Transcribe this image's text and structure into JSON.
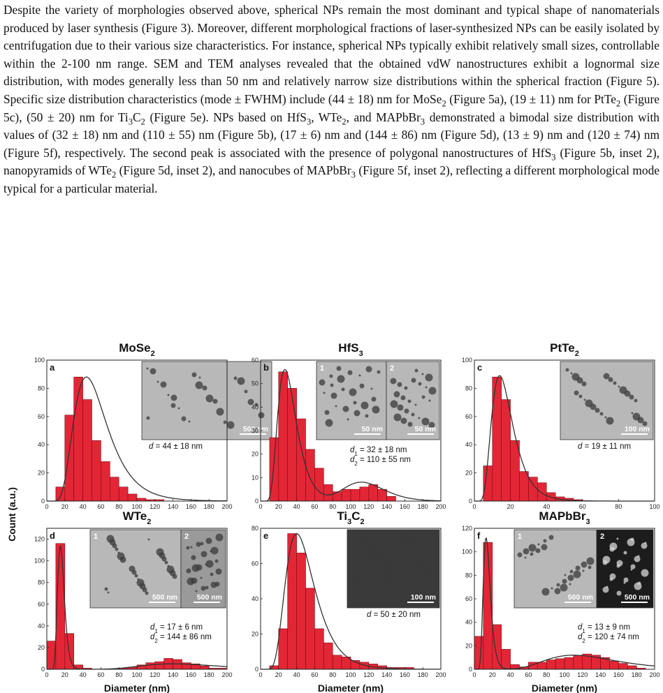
{
  "paragraph": "Despite the variety of morphologies observed above, spherical NPs remain the most dominant and typical shape of nanomaterials produced by laser synthesis (Figure 3). Moreover, different morphological fractions of laser-synthesized NPs can be easily isolated by centrifugation due to their various size characteristics. For instance, spherical NPs typically exhibit relatively small sizes, controllable within the 2-100 nm range. SEM and TEM analyses revealed that the obtained vdW nanostructures exhibit a lognormal size distribution, with modes generally less than 50 nm and relatively narrow size distributions within the spherical fraction (Figure 5). Specific size distribution characteristics (mode ± FWHM) include (44 ± 18) nm for MoSe{2} (Figure 5a), (19 ± 11) nm for PtTe{2} (Figure 5c), (50 ± 20) nm for Ti{3}C{2} (Figure 5e). NPs based on HfS{3}, WTe{2}, and MAPbBr{3} demonstrated a bimodal size distribution with values of (32 ± 18) nm and (110 ± 55) nm (Figure 5b), (17 ± 6) nm and (144 ± 86) nm (Figure 5d), (13 ± 9) nm and (120 ± 74) nm (Figure 5f), respectively. The second peak is associated with the presence of polygonal nanostructures of HfS{3} (Figure 5b, inset 2), nanopyramids of WTe{2} (Figure 5d, inset 2), and nanocubes of MAPbBr{3} (Figure 5f, inset 2), reflecting a different morphological mode typical for a particular material.",
  "figure": {
    "y_axis_title": "Count (a.u.)",
    "x_axis_title": "Diameter (nm)",
    "bar_color": "#e32636",
    "fit_color": "#333333"
  },
  "chart_data": [
    {
      "type": "bar",
      "label": "a",
      "title": [
        "MoSe",
        "2",
        ""
      ],
      "xlim": [
        0,
        200
      ],
      "xticks": [
        0,
        20,
        40,
        60,
        80,
        100,
        120,
        140,
        160,
        180,
        200
      ],
      "ylim": [
        0,
        100
      ],
      "yticks": [
        0,
        20,
        40,
        60,
        80,
        100
      ],
      "bin_width": 10,
      "bins": [
        10,
        20,
        30,
        40,
        50,
        60,
        70,
        80,
        90,
        100,
        110,
        120
      ],
      "values": [
        10,
        61,
        88,
        72,
        43,
        28,
        17,
        10,
        5,
        2,
        1,
        1
      ],
      "fit": [
        [
          {
            "m": 44,
            "s": 0.42,
            "a": 88
          }
        ]
      ],
      "stats": [
        [
          "d",
          "",
          " = 44 ± 18 nm"
        ]
      ],
      "insets": [
        {
          "scale": "500 nm",
          "num": ""
        }
      ]
    },
    {
      "type": "bar",
      "label": "b",
      "title": [
        "HfS",
        "3",
        ""
      ],
      "xlim": [
        0,
        200
      ],
      "xticks": [
        0,
        20,
        40,
        60,
        80,
        100,
        120,
        140,
        160,
        180,
        200
      ],
      "ylim": [
        0,
        60
      ],
      "yticks": [
        0,
        10,
        20,
        30,
        40,
        50,
        60
      ],
      "bin_width": 10,
      "bins": [
        10,
        20,
        30,
        40,
        50,
        60,
        70,
        80,
        90,
        100,
        110,
        120,
        130,
        140
      ],
      "values": [
        27,
        55,
        48,
        35,
        22,
        14,
        7,
        4,
        5,
        5,
        6,
        7,
        5,
        2
      ],
      "fit": [
        [
          {
            "m": 27,
            "s": 0.38,
            "a": 56
          },
          {
            "m": 112,
            "s": 0.2,
            "a": 8
          }
        ]
      ],
      "stats": [
        [
          "d",
          "1",
          " = 32 ± 18 nm"
        ],
        [
          "d",
          "2",
          " = 110 ± 55 nm"
        ]
      ],
      "insets": [
        {
          "scale": "50 nm",
          "num": "1"
        },
        {
          "scale": "50 nm",
          "num": "2"
        }
      ]
    },
    {
      "type": "bar",
      "label": "c",
      "title": [
        "PtTe",
        "2",
        ""
      ],
      "xlim": [
        0,
        100
      ],
      "xticks": [
        0,
        20,
        40,
        60,
        80,
        100
      ],
      "ylim": [
        0,
        100
      ],
      "yticks": [
        0,
        20,
        40,
        60,
        80,
        100
      ],
      "bin_width": 5,
      "bins": [
        5,
        10,
        15,
        20,
        25,
        30,
        35,
        40,
        45,
        50,
        55
      ],
      "values": [
        25,
        88,
        72,
        43,
        21,
        17,
        13,
        6,
        3,
        2,
        1
      ],
      "fit": [
        [
          {
            "m": 14,
            "s": 0.42,
            "a": 89
          }
        ]
      ],
      "stats": [
        [
          "d",
          "",
          " = 19 ± 11 nm"
        ]
      ],
      "insets": [
        {
          "scale": "100 nm",
          "num": ""
        }
      ]
    },
    {
      "type": "bar",
      "label": "d",
      "title": [
        "WTe",
        "2",
        ""
      ],
      "xlim": [
        0,
        200
      ],
      "xticks": [
        0,
        20,
        40,
        60,
        80,
        100,
        120,
        140,
        160,
        180,
        200
      ],
      "ylim": [
        0,
        130
      ],
      "yticks": [
        0,
        20,
        40,
        60,
        80,
        100,
        120
      ],
      "bin_width": 10,
      "bins": [
        0,
        10,
        20,
        30,
        40,
        50,
        60,
        70,
        80,
        90,
        100,
        110,
        120,
        130,
        140,
        150,
        160,
        170,
        180,
        190
      ],
      "values": [
        26,
        116,
        33,
        4,
        1,
        0,
        0,
        0,
        1,
        2,
        4,
        6,
        7,
        10,
        9,
        6,
        5,
        3,
        1,
        1
      ],
      "fit": [
        [
          {
            "m": 15,
            "s": 0.25,
            "a": 114
          },
          {
            "m": 140,
            "s": 0.3,
            "a": 5
          }
        ]
      ],
      "stats": [
        [
          "d",
          "1",
          " = 17 ± 6 nm"
        ],
        [
          "d",
          "2",
          " = 144 ± 86 nm"
        ]
      ],
      "insets": [
        {
          "scale": "500 nm",
          "num": "1"
        },
        {
          "scale": "500 nm",
          "num": "2"
        }
      ]
    },
    {
      "type": "bar",
      "label": "e",
      "title": [
        "Ti",
        "3",
        "C",
        "2"
      ],
      "xlim": [
        0,
        200
      ],
      "xticks": [
        0,
        20,
        40,
        60,
        80,
        100,
        120,
        140,
        160,
        180,
        200
      ],
      "ylim": [
        0,
        80
      ],
      "yticks": [
        0,
        20,
        40,
        60,
        80
      ],
      "bin_width": 10,
      "bins": [
        10,
        20,
        30,
        40,
        50,
        60,
        70,
        80,
        90,
        100,
        110,
        120,
        130,
        140,
        150,
        160
      ],
      "values": [
        2,
        23,
        77,
        66,
        46,
        23,
        15,
        8,
        7,
        5,
        4,
        3,
        2,
        1,
        1,
        1
      ],
      "fit": [
        [
          {
            "m": 40,
            "s": 0.4,
            "a": 77
          }
        ]
      ],
      "stats": [
        [
          "d",
          "",
          " = 50 ± 20 nm"
        ]
      ],
      "insets": [
        {
          "scale": "100 nm",
          "num": ""
        }
      ]
    },
    {
      "type": "bar",
      "label": "f",
      "title": [
        "MAPbBr",
        "3",
        ""
      ],
      "xlim": [
        0,
        200
      ],
      "xticks": [
        0,
        20,
        40,
        60,
        80,
        100,
        120,
        140,
        160,
        180,
        200
      ],
      "ylim": [
        0,
        120
      ],
      "yticks": [
        0,
        20,
        40,
        60,
        80,
        100,
        120
      ],
      "bin_width": 10,
      "bins": [
        0,
        10,
        20,
        30,
        40,
        50,
        60,
        70,
        80,
        90,
        100,
        110,
        120,
        130,
        140,
        150,
        160,
        170,
        180
      ],
      "values": [
        28,
        108,
        38,
        17,
        4,
        2,
        6,
        6,
        8,
        9,
        10,
        12,
        13,
        12,
        10,
        7,
        5,
        3,
        1
      ],
      "fit": [
        [
          {
            "m": 13,
            "s": 0.3,
            "a": 112
          },
          {
            "m": 110,
            "s": 0.35,
            "a": 12
          }
        ]
      ],
      "stats": [
        [
          "d",
          "1",
          " = 13 ± 9 nm"
        ],
        [
          "d",
          "2",
          " = 120 ± 74 nm"
        ]
      ],
      "insets": [
        {
          "scale": "500 nm",
          "num": "1"
        },
        {
          "scale": "500 nm",
          "num": "2"
        }
      ]
    }
  ]
}
